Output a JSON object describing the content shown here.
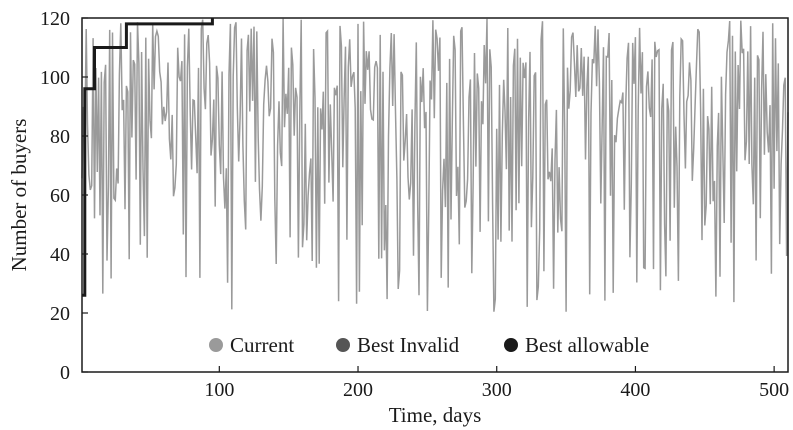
{
  "chart_data": {
    "type": "line",
    "xlabel": "Time, days",
    "ylabel": "Number of buyers",
    "xlim": [
      1,
      510
    ],
    "ylim": [
      0,
      120
    ],
    "xticks": [
      100,
      200,
      300,
      400,
      500
    ],
    "yticks": [
      0,
      20,
      40,
      60,
      80,
      100,
      120
    ],
    "grid": false,
    "legend_position": "bottom-center",
    "series": [
      {
        "name": "Current",
        "color": "#9a9a9a",
        "style": "noisy",
        "x_range": [
          1,
          510
        ],
        "baseline": 100,
        "low": 20,
        "high": 120
      },
      {
        "name": "Best Invalid",
        "color": "#555555",
        "x": [],
        "y": []
      },
      {
        "name": "Best allowable",
        "color": "#1a1a1a",
        "x": [
          1,
          3,
          3,
          10,
          10,
          33,
          33,
          95,
          95
        ],
        "y": [
          26,
          26,
          96,
          96,
          110,
          110,
          118,
          118,
          120
        ]
      }
    ]
  }
}
